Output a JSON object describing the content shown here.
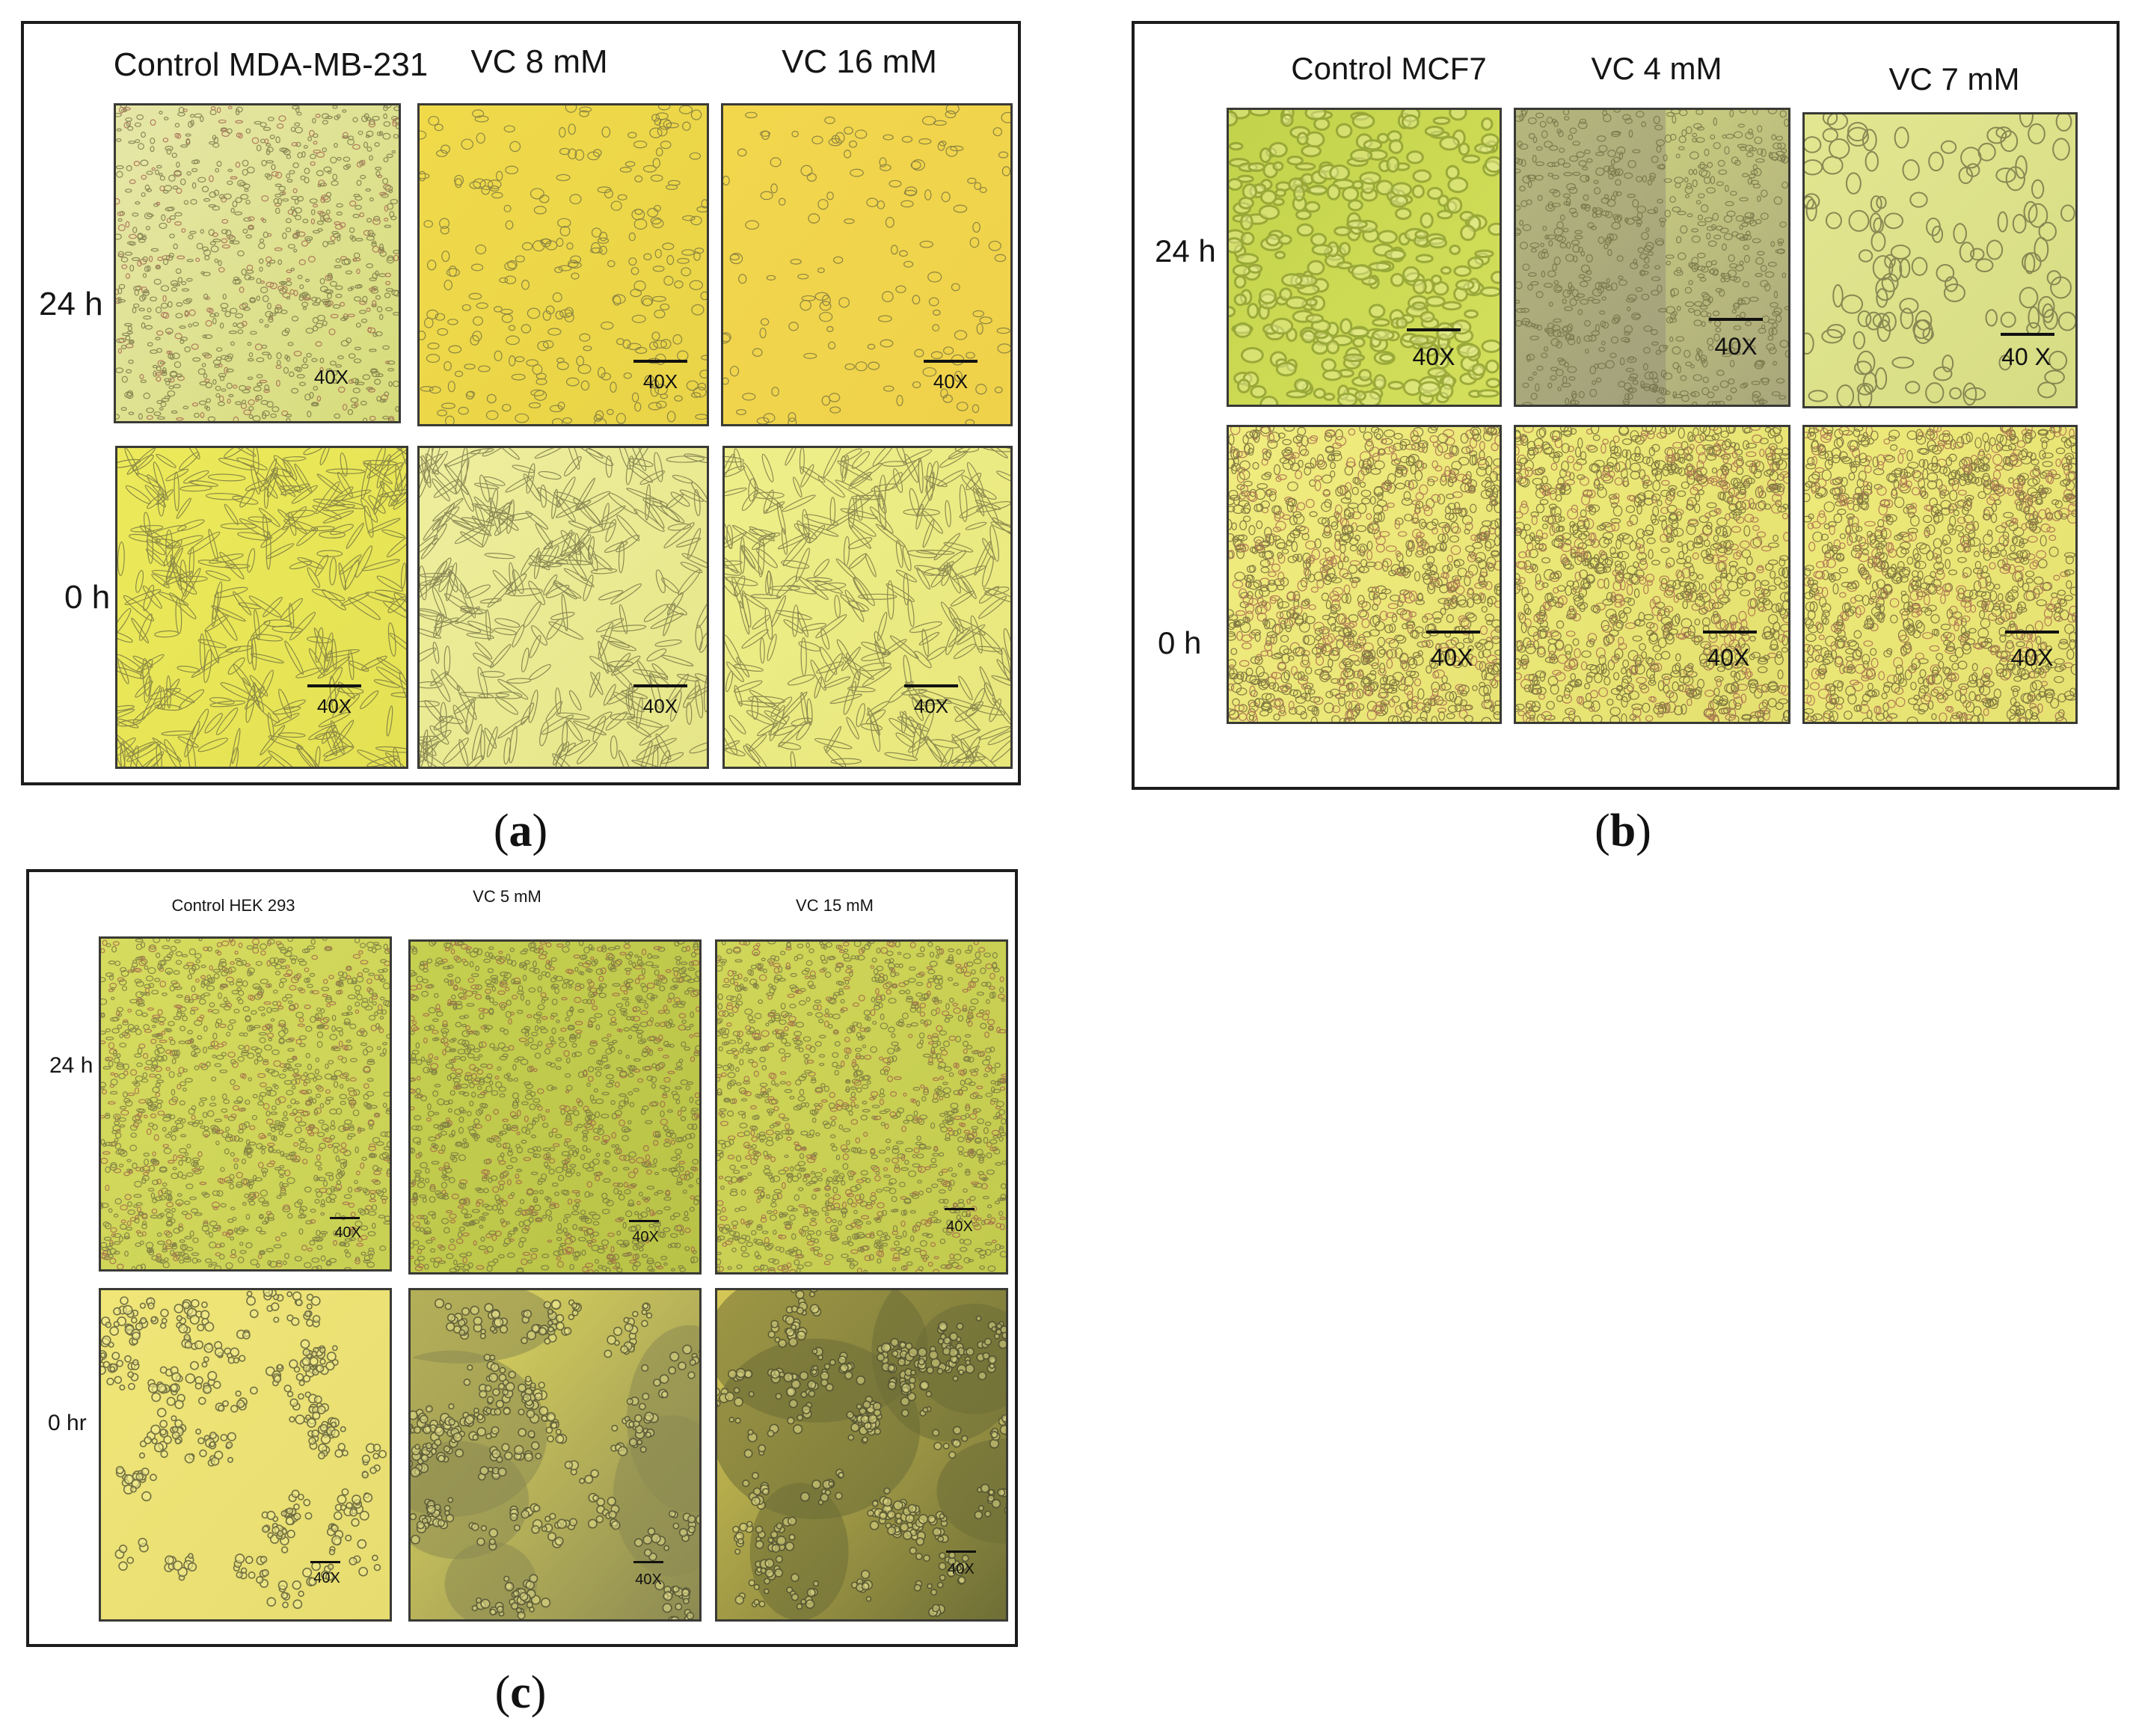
{
  "panels": [
    {
      "id": "a",
      "caption_letter": "a",
      "columns": [
        "Control MDA-MB-231",
        "VC 8 mM",
        "VC 16 mM"
      ],
      "rows": [
        "24 h",
        "0 h"
      ],
      "scale_labels": [
        [
          "40X",
          "40X",
          "40X"
        ],
        [
          "40X",
          "40X",
          "40X"
        ]
      ]
    },
    {
      "id": "b",
      "caption_letter": "b",
      "columns": [
        "Control MCF7",
        "VC 4 mM",
        "VC 7 mM"
      ],
      "rows": [
        "24 h",
        "0 h"
      ],
      "scale_labels": [
        [
          "40X",
          "40X",
          "40 X"
        ],
        [
          "40X",
          "40X",
          "40X"
        ]
      ]
    },
    {
      "id": "c",
      "caption_letter": "c",
      "columns": [
        "Control HEK 293",
        "VC 5 mM",
        "VC 15 mM"
      ],
      "rows": [
        "24 h",
        "0 hr"
      ],
      "scale_labels": [
        [
          "40X",
          "40X",
          "40X"
        ],
        [
          "40X",
          "40X",
          "40X"
        ]
      ]
    }
  ],
  "colors": {
    "frame": "#1c1c1c",
    "micrograph_yellow": "#e8e14a",
    "micrograph_green": "#c9d64a",
    "cell_outline": "#6d6a40"
  }
}
